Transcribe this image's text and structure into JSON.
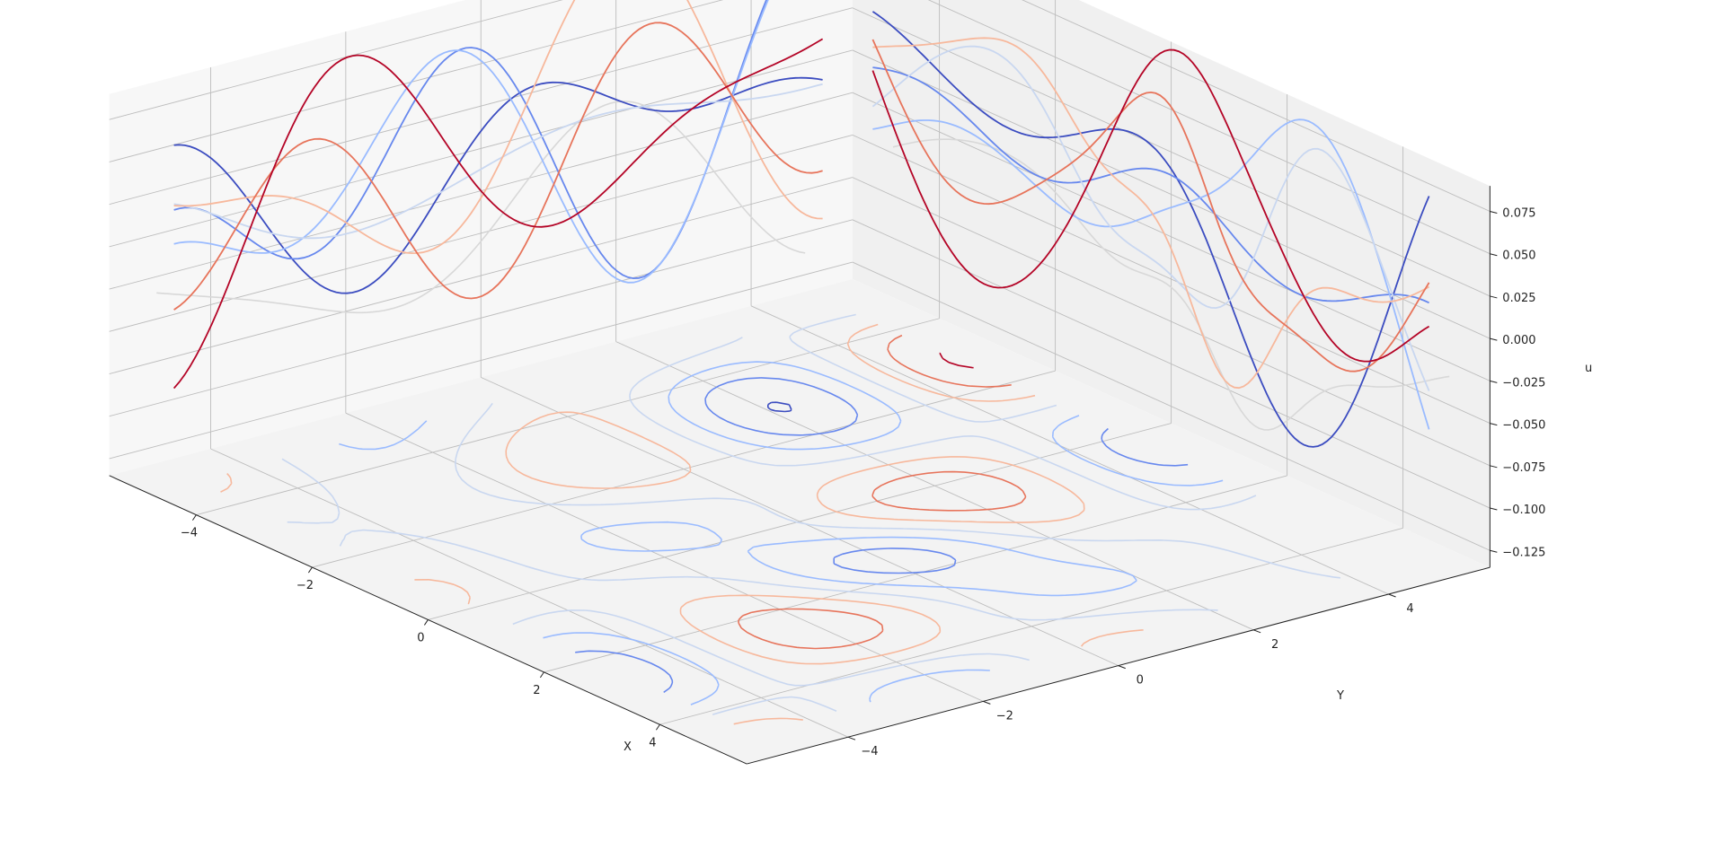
{
  "chart_data": {
    "type": "line",
    "plot_kind": "3d-wireframe-slices-with-floor-contours",
    "xlabel": "X",
    "ylabel": "Y",
    "zlabel": "u",
    "x_ticks": [
      "−4",
      "−2",
      "0",
      "2",
      "4"
    ],
    "y_ticks": [
      "−4",
      "−2",
      "0",
      "2",
      "4"
    ],
    "z_ticks": [
      "−0.125",
      "−0.100",
      "−0.075",
      "−0.050",
      "−0.025",
      "0.000",
      "0.025",
      "0.050",
      "0.075"
    ],
    "xlim": [
      -5.5,
      5.5
    ],
    "ylim": [
      -5.5,
      5.5
    ],
    "zlim": [
      -0.135,
      0.09
    ],
    "grid": true,
    "colormap": "coolwarm",
    "series_colors": [
      "#3b4cc0",
      "#6788ee",
      "#9abbff",
      "#c9d7f0",
      "#f7b89c",
      "#e7745b",
      "#b40426"
    ],
    "x_slices_y_values": [
      -4.8,
      -3.6,
      -2.4,
      -1.2,
      0.0,
      1.2,
      2.4
    ],
    "y_slices_x_values": [
      -4.8,
      -3.6,
      -2.4,
      -1.2,
      0.0,
      1.2,
      2.4
    ],
    "contour_levels": [
      -0.06,
      -0.04,
      -0.02,
      0.0,
      0.02,
      0.04,
      0.06
    ],
    "shadow_color": "#d8d8d8"
  }
}
